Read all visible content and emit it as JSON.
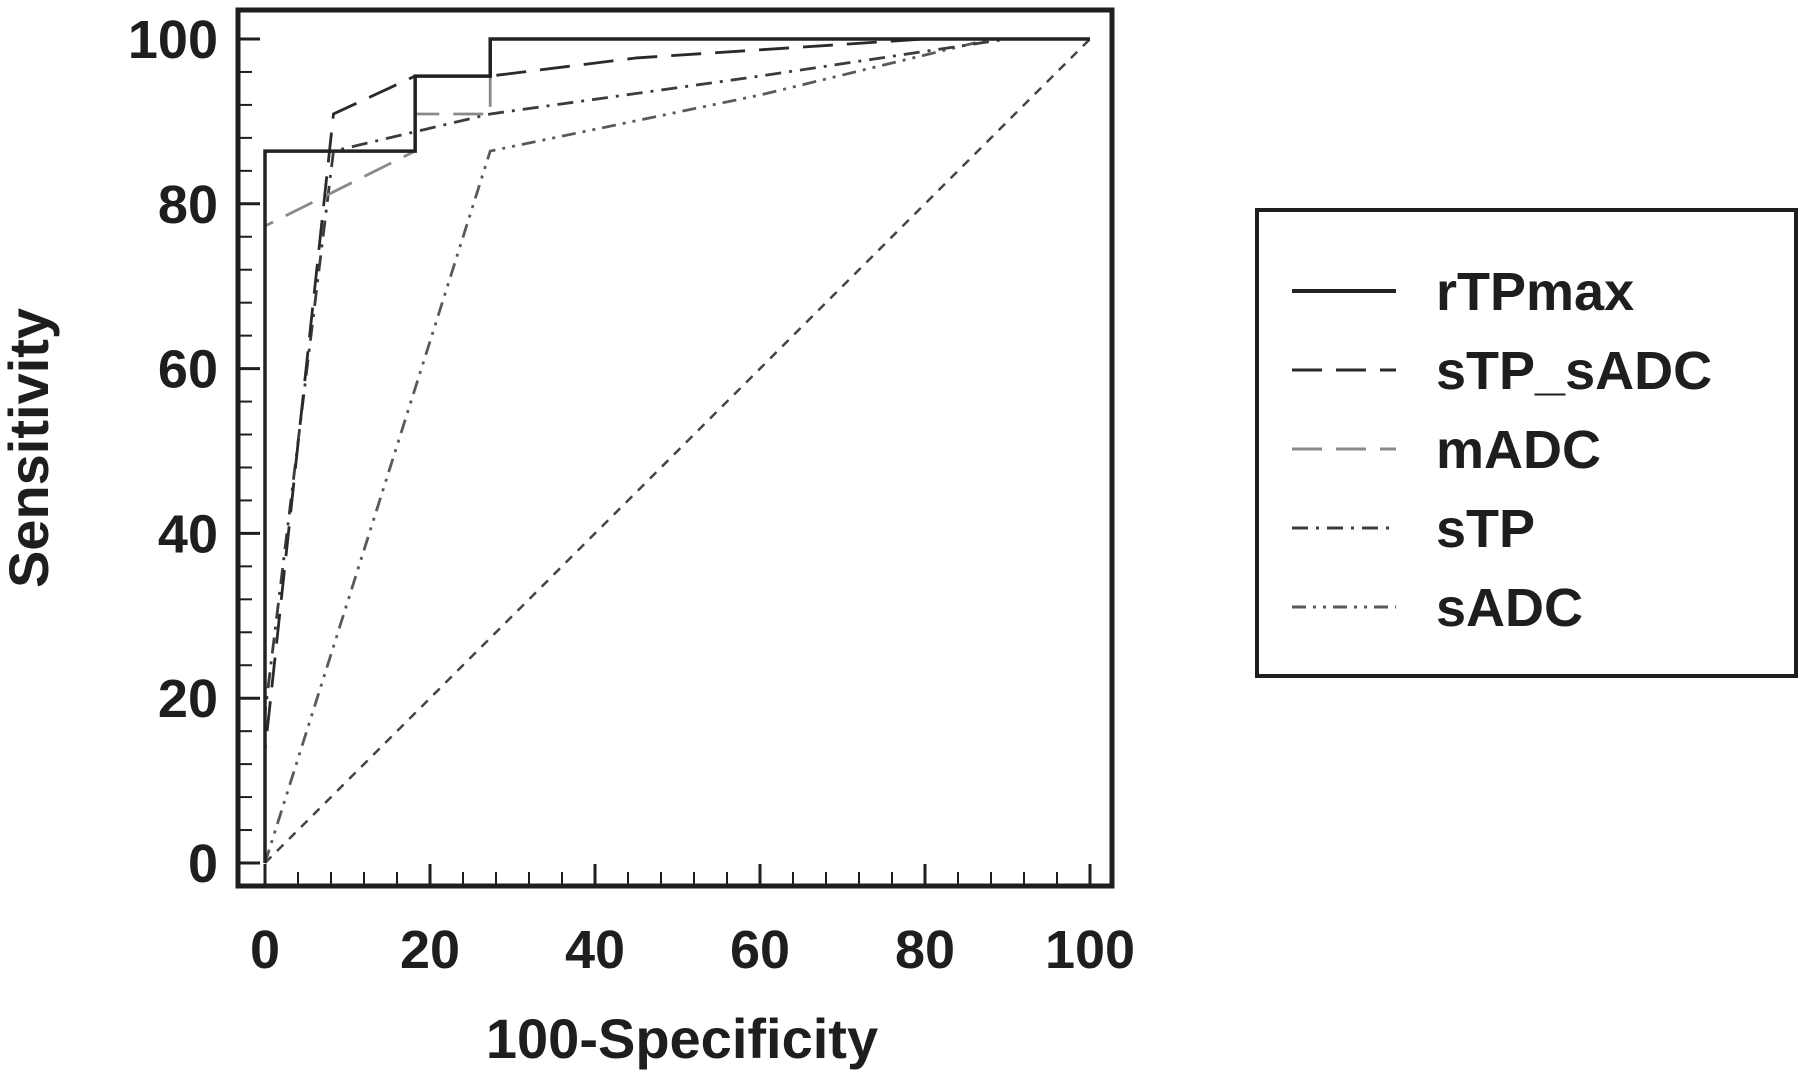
{
  "chart_data": {
    "type": "line",
    "title": "",
    "xlabel": "100-Specificity",
    "ylabel": "Sensitivity",
    "xlim": [
      0,
      100
    ],
    "ylim": [
      0,
      100
    ],
    "xticks": [
      0,
      20,
      40,
      60,
      80,
      100
    ],
    "yticks": [
      0,
      20,
      40,
      60,
      80,
      100
    ],
    "x_minor_step": 4,
    "y_minor_step": 4,
    "grid": false,
    "legend_position": "right",
    "series": [
      {
        "name": "rTPmax",
        "color": "#222222",
        "dash": "solid",
        "points": [
          [
            0,
            0
          ],
          [
            0,
            86.4
          ],
          [
            18.2,
            86.4
          ],
          [
            18.2,
            95.5
          ],
          [
            27.3,
            95.5
          ],
          [
            27.3,
            100
          ],
          [
            100,
            100
          ]
        ]
      },
      {
        "name": "sTP_sADC",
        "color": "#2a2a2a",
        "dash": "long-dash",
        "points": [
          [
            0,
            0
          ],
          [
            0,
            13.6
          ],
          [
            8.3,
            90.9
          ],
          [
            18.2,
            95.5
          ],
          [
            27.3,
            95.5
          ],
          [
            45,
            97.7
          ],
          [
            80,
            100
          ],
          [
            100,
            100
          ]
        ]
      },
      {
        "name": "mADC",
        "color": "#8a8a8a",
        "dash": "long-dash",
        "points": [
          [
            0,
            0
          ],
          [
            0,
            77.3
          ],
          [
            18.2,
            86.4
          ],
          [
            18.2,
            90.9
          ],
          [
            27.3,
            90.9
          ],
          [
            27.3,
            100
          ],
          [
            100,
            100
          ]
        ]
      },
      {
        "name": "sTP",
        "color": "#3c3c3c",
        "dash": "dash-dot",
        "points": [
          [
            0,
            0
          ],
          [
            0,
            18.2
          ],
          [
            8.3,
            86.4
          ],
          [
            27.3,
            90.9
          ],
          [
            60,
            95.5
          ],
          [
            90,
            100
          ],
          [
            100,
            100
          ]
        ]
      },
      {
        "name": "sADC",
        "color": "#5a5a5a",
        "dash": "dash-dot-dot",
        "points": [
          [
            0,
            0
          ],
          [
            27.3,
            86.4
          ],
          [
            60,
            93.2
          ],
          [
            88,
            100
          ],
          [
            100,
            100
          ]
        ]
      }
    ],
    "reference_line": {
      "color": "#444444",
      "dash": "short-dash",
      "points": [
        [
          0,
          0
        ],
        [
          100,
          100
        ]
      ]
    }
  }
}
